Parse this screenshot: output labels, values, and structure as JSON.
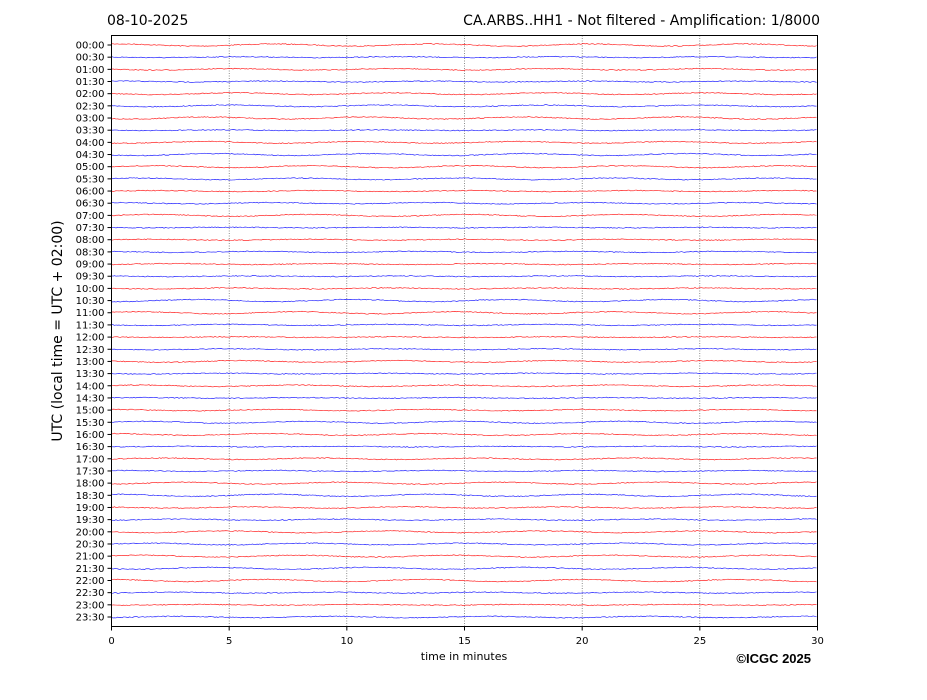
{
  "chart_data": {
    "type": "line",
    "title_left": "08-10-2025",
    "title_right": "CA.ARBS..HH1 - Not filtered - Amplification: 1/8000",
    "xlabel": "time in minutes",
    "ylabel": "UTC (local time = UTC + 02:00)",
    "xlim": [
      0,
      30
    ],
    "x_ticks": [
      "0",
      "5",
      "10",
      "15",
      "20",
      "25",
      "30"
    ],
    "x_tick_values": [
      0,
      5,
      10,
      15,
      20,
      25,
      30
    ],
    "grid": "vertical dotted lines at x ticks",
    "y_tick_labels": [
      "00:00",
      "00:30",
      "01:00",
      "01:30",
      "02:00",
      "02:30",
      "03:00",
      "03:30",
      "04:00",
      "04:30",
      "05:00",
      "05:30",
      "06:00",
      "06:30",
      "07:00",
      "07:30",
      "08:00",
      "08:30",
      "09:00",
      "09:30",
      "10:00",
      "10:30",
      "11:00",
      "11:30",
      "12:00",
      "12:30",
      "13:00",
      "13:30",
      "14:00",
      "14:30",
      "15:00",
      "15:30",
      "16:00",
      "16:30",
      "17:00",
      "17:30",
      "18:00",
      "18:30",
      "19:00",
      "19:30",
      "20:00",
      "20:30",
      "21:00",
      "21:30",
      "22:00",
      "22:30",
      "23:00",
      "23:30"
    ],
    "trace_colors": [
      "#ff0000",
      "#0000ff"
    ],
    "trace_color_rule": "alternating by row starting red"
  },
  "copyright": "©ICGC 2025"
}
